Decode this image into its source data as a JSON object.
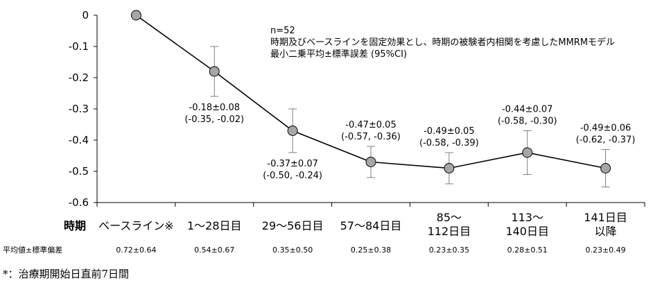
{
  "chart_data": {
    "type": "line",
    "title": "",
    "xlabel": "時期",
    "ylabel": "",
    "ylim": [
      -0.6,
      0
    ],
    "yticks": [
      "0",
      "-0.1",
      "-0.2",
      "-0.3",
      "-0.4",
      "-0.5",
      "-0.6"
    ],
    "ytick_values": [
      0,
      -0.1,
      -0.2,
      -0.3,
      -0.4,
      -0.5,
      -0.6
    ],
    "grid": false,
    "categories": [
      [
        "ベースライン※"
      ],
      [
        "1～28日目"
      ],
      [
        "29～56日目"
      ],
      [
        "57～84日目"
      ],
      [
        "85～",
        "112日目"
      ],
      [
        "113～",
        "140日目"
      ],
      [
        "141日目",
        "以降"
      ]
    ],
    "series": [
      {
        "values": [
          0,
          -0.18,
          -0.37,
          -0.47,
          -0.49,
          -0.44,
          -0.49
        ],
        "ci_lower": [
          null,
          -0.35,
          -0.5,
          -0.57,
          -0.58,
          -0.58,
          -0.62
        ],
        "ci_upper": [
          null,
          -0.02,
          -0.24,
          -0.36,
          -0.39,
          -0.3,
          -0.37
        ],
        "err_low": [
          null,
          -0.26,
          -0.44,
          -0.52,
          -0.54,
          -0.51,
          -0.55
        ],
        "err_high": [
          null,
          -0.1,
          -0.3,
          -0.42,
          -0.44,
          -0.37,
          -0.43
        ],
        "labels": [
          null,
          [
            "-0.18±0.08",
            "(-0.35, -0.02)"
          ],
          [
            "-0.37±0.07",
            "(-0.50, -0.24)"
          ],
          [
            "-0.47±0.05",
            "(-0.57, -0.36)"
          ],
          [
            "-0.49±0.05",
            "(-0.58, -0.39)"
          ],
          [
            "-0.44±0.07",
            "(-0.58, -0.30)"
          ],
          [
            "-0.49±0.06",
            "(-0.62, -0.37)"
          ]
        ]
      }
    ],
    "annotations": [
      "n=52",
      "時期及びベースラインを固定効果とし、時期の被験者内相関を考慮したMMRMモデル",
      "最小二乗平均±標準誤差 (95%CI)"
    ],
    "table_row": {
      "label": "平均値±標準偏差",
      "values": [
        "0.72±0.64",
        "0.54±0.67",
        "0.35±0.50",
        "0.25±0.38",
        "0.23±0.35",
        "0.28±0.51",
        "0.23±0.49"
      ]
    }
  },
  "footnote": "*：治療期開始日直前7日間",
  "colors": {
    "marker_fill": "#a6a6a6",
    "line": "#000000",
    "errorbar": "#7f7f7f",
    "axis": "#000000"
  }
}
